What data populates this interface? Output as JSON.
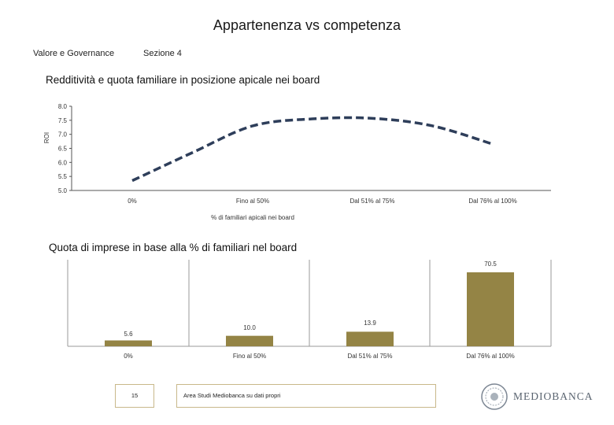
{
  "header": {
    "title": "Appartenenza vs competenza",
    "left_label": "Valore e Governance",
    "section_label": "Sezione 4"
  },
  "colors": {
    "line": "#2e3e5a",
    "bar": "#948445",
    "grid": "#9a9a9a",
    "footer_border": "#c8b88a"
  },
  "chart_data": [
    {
      "type": "line",
      "title": "Redditività e quota familiare in posizione apicale nei board",
      "ylabel": "ROI",
      "xlabel": "% di familiari apicali nei board",
      "categories": [
        "0%",
        "Fino al 50%",
        "Dal 51% al 75%",
        "Dal 76% al 100%"
      ],
      "y_ticks": [
        "8.0",
        "7.5",
        "7.0",
        "6.5",
        "6.0",
        "5.5",
        "5.0"
      ],
      "ylim": [
        5.0,
        8.0
      ],
      "style": "dashed",
      "series": [
        {
          "name": "ROI",
          "x": [
            0,
            0.5,
            1,
            1.5,
            2,
            2.5,
            3
          ],
          "values": [
            5.35,
            6.35,
            7.3,
            7.55,
            7.57,
            7.3,
            6.65
          ]
        }
      ]
    },
    {
      "type": "bar",
      "title": "Quota di imprese in base alla % di familiari nel board",
      "categories": [
        "0%",
        "Fino al 50%",
        "Dal 51% al 75%",
        "Dal 76% al 100%"
      ],
      "values": [
        5.6,
        10.0,
        13.9,
        70.5
      ],
      "value_labels": [
        "5.6",
        "10.0",
        "13.9",
        "70.5"
      ],
      "ylim": [
        0,
        100
      ]
    }
  ],
  "footer": {
    "page_number": "15",
    "source": "Area Studi Mediobanca su dati propri",
    "logo_text": "MEDIOBANCA"
  }
}
